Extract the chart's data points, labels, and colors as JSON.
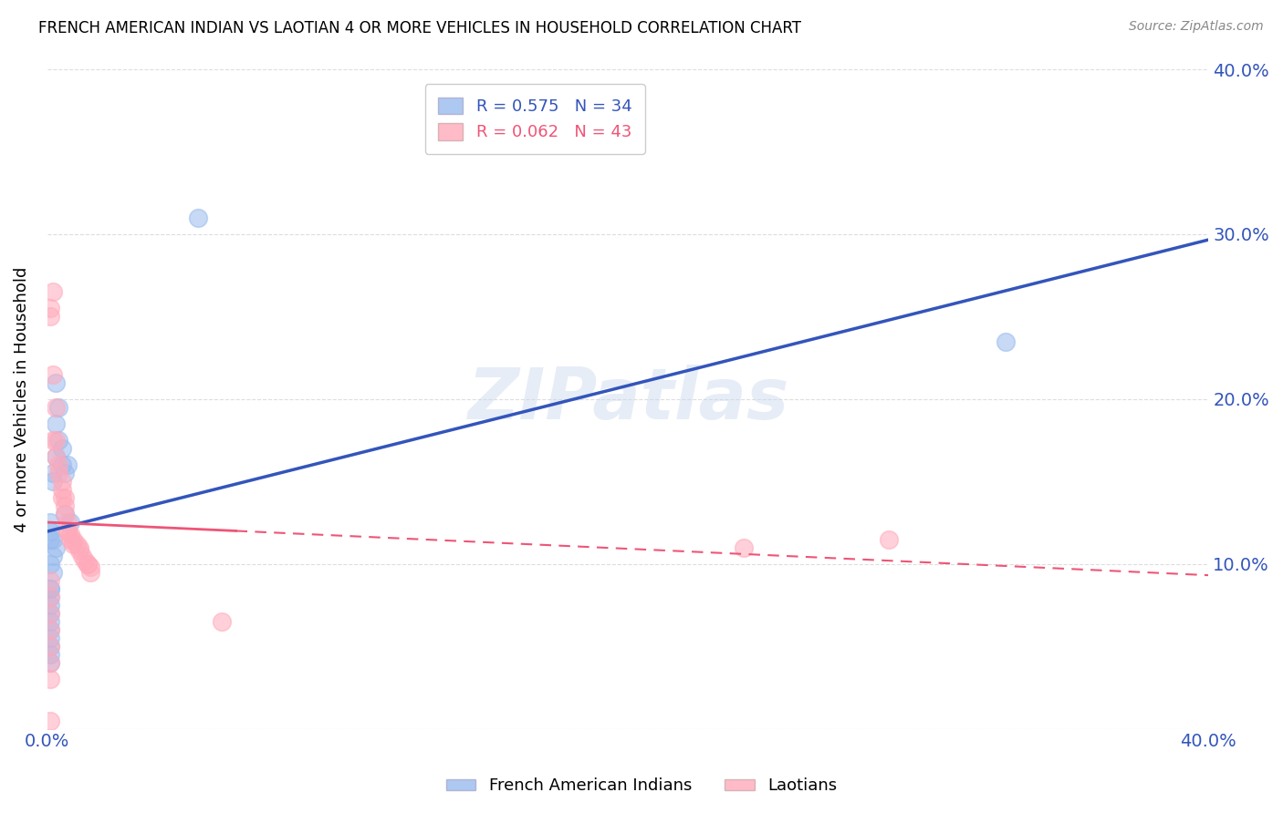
{
  "title": "FRENCH AMERICAN INDIAN VS LAOTIAN 4 OR MORE VEHICLES IN HOUSEHOLD CORRELATION CHART",
  "source": "Source: ZipAtlas.com",
  "ylabel": "4 or more Vehicles in Household",
  "xlim": [
    0.0,
    0.4
  ],
  "ylim": [
    0.0,
    0.4
  ],
  "xticks": [
    0.0,
    0.08,
    0.16,
    0.24,
    0.32,
    0.4
  ],
  "yticks": [
    0.0,
    0.1,
    0.2,
    0.3,
    0.4
  ],
  "blue_R": 0.575,
  "blue_N": 34,
  "pink_R": 0.062,
  "pink_N": 43,
  "blue_color": "#99bbee",
  "pink_color": "#ffaabb",
  "blue_line_color": "#3355bb",
  "pink_line_color": "#ee5577",
  "watermark": "ZIPatlas",
  "blue_scatter_x": [
    0.003,
    0.003,
    0.004,
    0.003,
    0.002,
    0.002,
    0.004,
    0.005,
    0.006,
    0.005,
    0.008,
    0.006,
    0.007,
    0.002,
    0.003,
    0.001,
    0.001,
    0.002,
    0.001,
    0.001,
    0.002,
    0.001,
    0.001,
    0.001,
    0.001,
    0.001,
    0.001,
    0.001,
    0.001,
    0.001,
    0.001,
    0.001,
    0.052,
    0.33
  ],
  "blue_scatter_y": [
    0.185,
    0.21,
    0.195,
    0.165,
    0.155,
    0.15,
    0.175,
    0.17,
    0.155,
    0.16,
    0.125,
    0.13,
    0.16,
    0.105,
    0.11,
    0.125,
    0.115,
    0.115,
    0.12,
    0.1,
    0.095,
    0.085,
    0.085,
    0.08,
    0.075,
    0.07,
    0.065,
    0.06,
    0.055,
    0.05,
    0.045,
    0.04,
    0.31,
    0.235
  ],
  "pink_scatter_x": [
    0.002,
    0.001,
    0.001,
    0.002,
    0.003,
    0.002,
    0.003,
    0.003,
    0.004,
    0.004,
    0.005,
    0.005,
    0.005,
    0.006,
    0.006,
    0.006,
    0.007,
    0.007,
    0.007,
    0.008,
    0.008,
    0.009,
    0.009,
    0.01,
    0.011,
    0.011,
    0.012,
    0.013,
    0.014,
    0.014,
    0.015,
    0.015,
    0.001,
    0.001,
    0.001,
    0.001,
    0.001,
    0.001,
    0.001,
    0.06,
    0.24,
    0.29,
    0.001
  ],
  "pink_scatter_y": [
    0.265,
    0.25,
    0.255,
    0.215,
    0.195,
    0.175,
    0.175,
    0.165,
    0.16,
    0.155,
    0.15,
    0.145,
    0.14,
    0.14,
    0.135,
    0.13,
    0.125,
    0.12,
    0.12,
    0.118,
    0.115,
    0.115,
    0.112,
    0.112,
    0.11,
    0.108,
    0.105,
    0.102,
    0.1,
    0.1,
    0.098,
    0.095,
    0.09,
    0.08,
    0.07,
    0.06,
    0.05,
    0.04,
    0.03,
    0.065,
    0.11,
    0.115,
    0.005
  ],
  "legend_label_blue": "French American Indians",
  "legend_label_pink": "Laotians",
  "background_color": "#ffffff",
  "grid_color": "#dddddd"
}
